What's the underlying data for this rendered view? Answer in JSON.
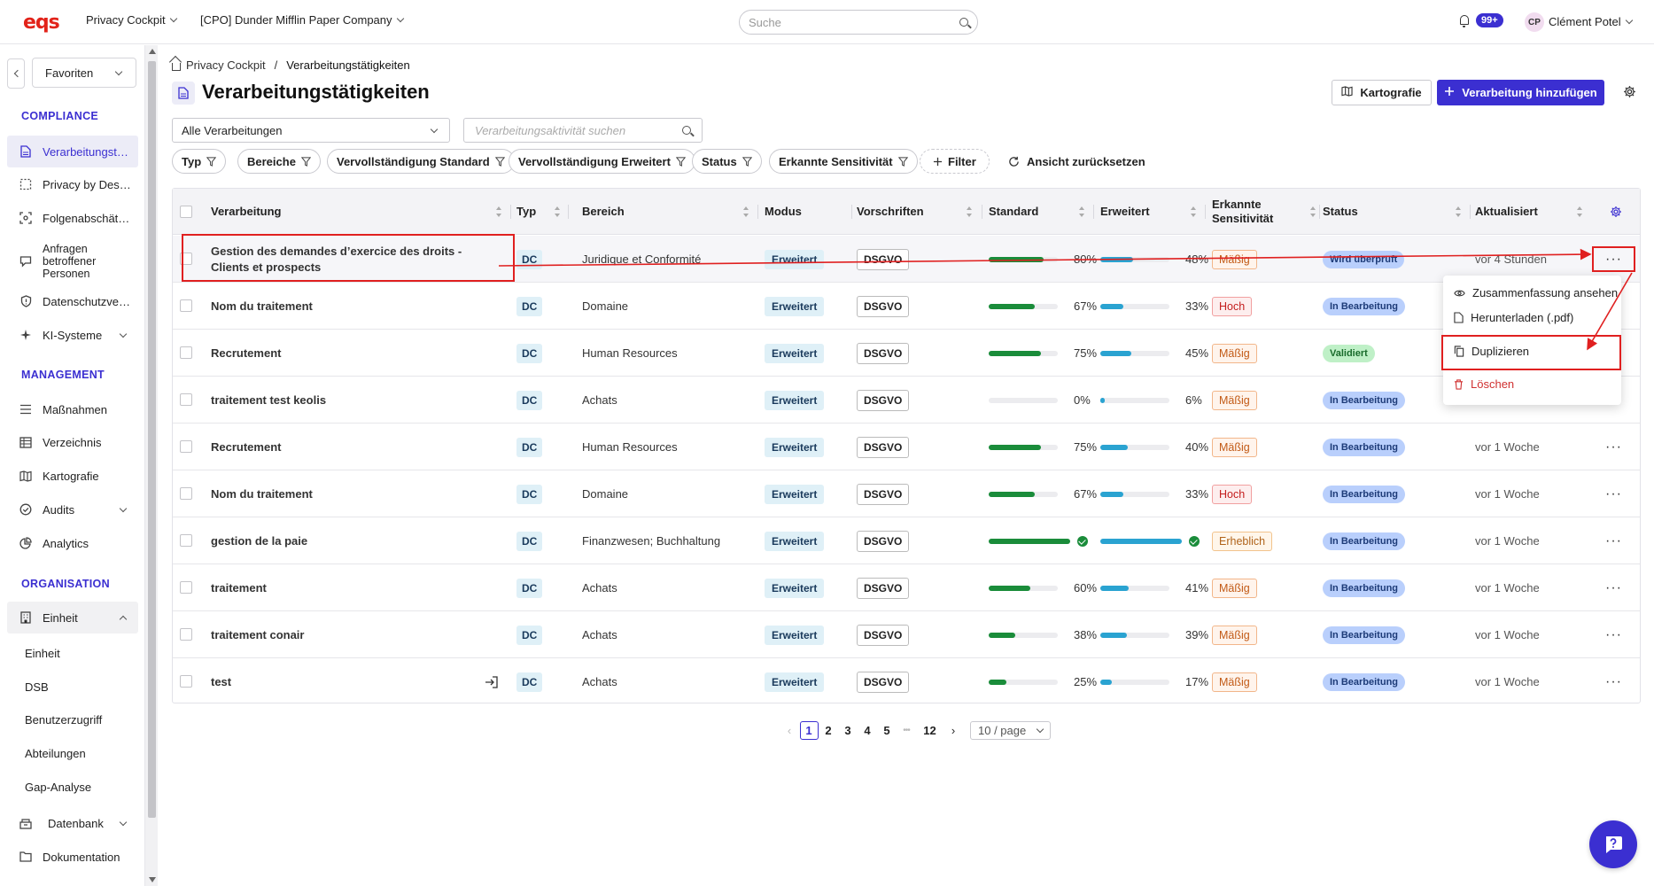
{
  "topbar": {
    "logo": "eqs",
    "app_switcher": "Privacy Cockpit",
    "company": "[CPO] Dunder Mifflin Paper Company",
    "search_placeholder": "Suche",
    "notifications": "99+",
    "avatar_initials": "CP",
    "user_name": "Clément Potel"
  },
  "sidebar": {
    "favorites": "Favoriten",
    "sections": {
      "compliance": "COMPLIANCE",
      "management": "MANAGEMENT",
      "organisation": "ORGANISATION"
    },
    "compliance_items": [
      {
        "label": "Verarbeitungstätigkeiten",
        "icon": "document-icon"
      },
      {
        "label": "Privacy by Design",
        "icon": "dashed-square-icon"
      },
      {
        "label": "Folgenabschätzungen",
        "icon": "target-icon"
      },
      {
        "label": "Anfragen betroffener Personen",
        "icon": "chat-icon"
      },
      {
        "label": "Datenschutzverletzungen",
        "icon": "shield-alert-icon"
      },
      {
        "label": "KI-Systeme",
        "icon": "sparkle-icon"
      }
    ],
    "management_items": [
      {
        "label": "Maßnahmen",
        "icon": "list-icon"
      },
      {
        "label": "Verzeichnis",
        "icon": "table-icon"
      },
      {
        "label": "Kartografie",
        "icon": "map-icon"
      },
      {
        "label": "Audits",
        "icon": "check-circle-icon"
      },
      {
        "label": "Analytics",
        "icon": "pie-chart-icon"
      }
    ],
    "organisation_items": {
      "group": "Einheit",
      "subitems": [
        "Einheit",
        "DSB",
        "Benutzerzugriff",
        "Abteilungen",
        "Gap-Analyse"
      ],
      "datenbank": "Datenbank",
      "dokumentation": "Dokumentation"
    }
  },
  "breadcrumb": {
    "root": "Privacy Cockpit",
    "separator": "/",
    "current": "Verarbeitungstätigkeiten"
  },
  "page": {
    "title": "Verarbeitungstätigkeiten",
    "kartografie_button": "Kartografie",
    "add_button": "Verarbeitung hinzufügen"
  },
  "filters": {
    "select_value": "Alle Verarbeitungen",
    "search_placeholder": "Verarbeitungsaktivität suchen",
    "chips": [
      "Typ",
      "Bereiche",
      "Vervollständigung Standard",
      "Vervollständigung Erweitert",
      "Status",
      "Erkannte Sensitivität"
    ],
    "add_filter": "Filter",
    "reset": "Ansicht zurücksetzen"
  },
  "table": {
    "columns": {
      "verarbeitung": "Verarbeitung",
      "typ": "Typ",
      "bereich": "Bereich",
      "modus": "Modus",
      "vorschriften": "Vorschriften",
      "standard": "Standard",
      "erweitert": "Erweitert",
      "sensitivitaet": "Erkannte Sensitivität",
      "status": "Status",
      "aktualisiert": "Aktualisiert"
    },
    "rows": [
      {
        "name": "Gestion des demandes d’exercice des droits - Clients et prospects",
        "typ": "DC",
        "bereich": "Juridique et Conformité",
        "modus": "Erweitert",
        "vorschrift": "DSGVO",
        "standard": 80,
        "standard_label": "80%",
        "erweitert": 48,
        "erweitert_label": "48%",
        "sensitivitaet": "Mäßig",
        "sens_level": "m",
        "status": "Wird überprüft",
        "status_kind": "b",
        "aktualisiert": "vor 4 Stunden"
      },
      {
        "name": "Nom du traitement",
        "typ": "DC",
        "bereich": "Domaine",
        "modus": "Erweitert",
        "vorschrift": "DSGVO",
        "standard": 67,
        "standard_label": "67%",
        "erweitert": 33,
        "erweitert_label": "33%",
        "sensitivitaet": "Hoch",
        "sens_level": "h",
        "status": "In Bearbeitung",
        "status_kind": "b",
        "aktualisiert": ""
      },
      {
        "name": "Recrutement",
        "typ": "DC",
        "bereich": "Human Resources",
        "modus": "Erweitert",
        "vorschrift": "DSGVO",
        "standard": 75,
        "standard_label": "75%",
        "erweitert": 45,
        "erweitert_label": "45%",
        "sensitivitaet": "Mäßig",
        "sens_level": "m",
        "status": "Validiert",
        "status_kind": "v",
        "aktualisiert": ""
      },
      {
        "name": "traitement test keolis",
        "typ": "DC",
        "bereich": "Achats",
        "modus": "Erweitert",
        "vorschrift": "DSGVO",
        "standard": 0,
        "standard_label": "0%",
        "erweitert": 6,
        "erweitert_label": "6%",
        "sensitivitaet": "Mäßig",
        "sens_level": "m",
        "status": "In Bearbeitung",
        "status_kind": "b",
        "aktualisiert": ""
      },
      {
        "name": "Recrutement",
        "typ": "DC",
        "bereich": "Human Resources",
        "modus": "Erweitert",
        "vorschrift": "DSGVO",
        "standard": 75,
        "standard_label": "75%",
        "erweitert": 40,
        "erweitert_label": "40%",
        "sensitivitaet": "Mäßig",
        "sens_level": "m",
        "status": "In Bearbeitung",
        "status_kind": "b",
        "aktualisiert": "vor 1 Woche"
      },
      {
        "name": "Nom du traitement",
        "typ": "DC",
        "bereich": "Domaine",
        "modus": "Erweitert",
        "vorschrift": "DSGVO",
        "standard": 67,
        "standard_label": "67%",
        "erweitert": 33,
        "erweitert_label": "33%",
        "sensitivitaet": "Hoch",
        "sens_level": "h",
        "status": "In Bearbeitung",
        "status_kind": "b",
        "aktualisiert": "vor 1 Woche"
      },
      {
        "name": "gestion de la paie",
        "typ": "DC",
        "bereich": "Finanzwesen; Buchhaltung",
        "modus": "Erweitert",
        "vorschrift": "DSGVO",
        "standard": 100,
        "standard_label": "",
        "erweitert": 100,
        "erweitert_label": "",
        "sensitivitaet": "Erheblich",
        "sens_level": "e",
        "status": "In Bearbeitung",
        "status_kind": "b",
        "aktualisiert": "vor 1 Woche"
      },
      {
        "name": "traitement",
        "typ": "DC",
        "bereich": "Achats",
        "modus": "Erweitert",
        "vorschrift": "DSGVO",
        "standard": 60,
        "standard_label": "60%",
        "erweitert": 41,
        "erweitert_label": "41%",
        "sensitivitaet": "Mäßig",
        "sens_level": "m",
        "status": "In Bearbeitung",
        "status_kind": "b",
        "aktualisiert": "vor 1 Woche"
      },
      {
        "name": "traitement conair",
        "typ": "DC",
        "bereich": "Achats",
        "modus": "Erweitert",
        "vorschrift": "DSGVO",
        "standard": 38,
        "standard_label": "38%",
        "erweitert": 39,
        "erweitert_label": "39%",
        "sensitivitaet": "Mäßig",
        "sens_level": "m",
        "status": "In Bearbeitung",
        "status_kind": "b",
        "aktualisiert": "vor 1 Woche"
      },
      {
        "name": "test",
        "typ": "DC",
        "bereich": "Achats",
        "modus": "Erweitert",
        "vorschrift": "DSGVO",
        "standard": 25,
        "standard_label": "25%",
        "erweitert": 17,
        "erweitert_label": "17%",
        "sensitivitaet": "Mäßig",
        "sens_level": "m",
        "status": "In Bearbeitung",
        "status_kind": "b",
        "aktualisiert": "vor 1 Woche"
      }
    ]
  },
  "row_menu": {
    "items": [
      "Zusammenfassung ansehen",
      "Herunterladen (.pdf)",
      "Duplizieren",
      "Löschen"
    ]
  },
  "pagination": {
    "pages": [
      "1",
      "2",
      "3",
      "4",
      "5",
      "•••",
      "12"
    ],
    "current": "1",
    "page_size": "10 / page"
  },
  "colors": {
    "accent": "#3b2fd1",
    "standard_bar": "#1a8c3a",
    "erweitert_bar": "#2aa3d1",
    "annotation": "#e02020"
  }
}
